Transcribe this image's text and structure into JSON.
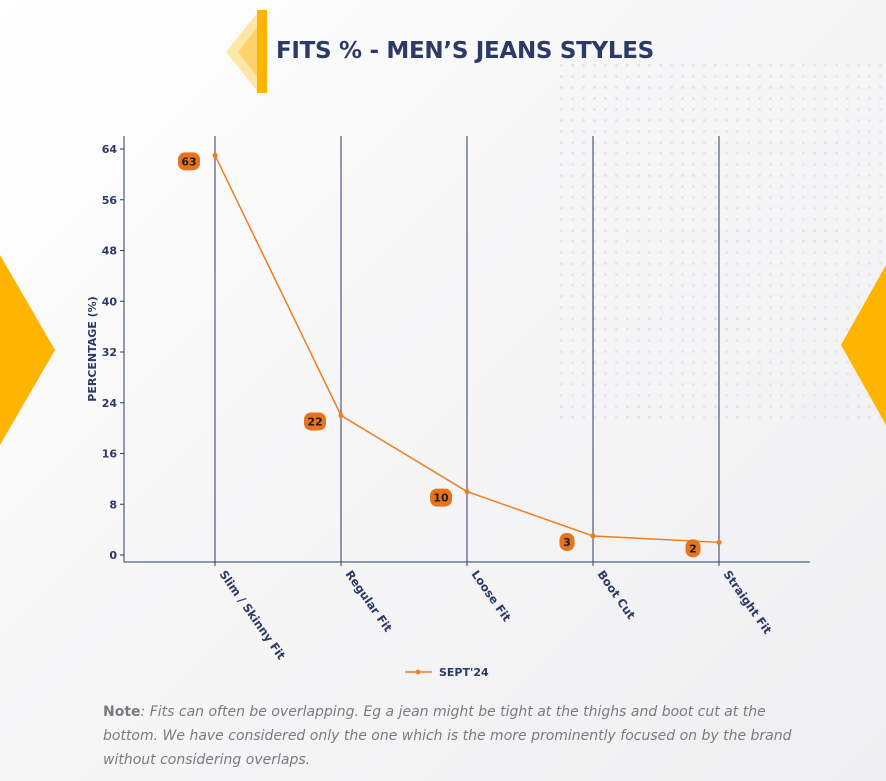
{
  "title": "FITS % - MEN’S JEANS STYLES",
  "note": {
    "label": "Note",
    "text": ": Fits can often be overlapping. Eg a jean might be tight at the thighs and boot cut at the bottom. We have considered only the one which is the more prominently focused on by the brand without considering overlaps."
  },
  "colors": {
    "series": "#f07d1e",
    "label_bg": "#e8731c",
    "axis": "#2b3a66",
    "accent": "#ffb400"
  },
  "chart_data": {
    "type": "line",
    "categories": [
      "Slim / Skinny Fit",
      "Regular Fit",
      "Loose Fit",
      "Boot Cut",
      "Straight Fit"
    ],
    "series": [
      {
        "name": "SEPT'24",
        "values": [
          63,
          22,
          10,
          3,
          2
        ]
      }
    ],
    "data_labels": [
      "63",
      "22",
      "10",
      "3",
      "2"
    ],
    "ylabel": "PERCENTAGE (%)",
    "xlabel": "",
    "ylim": [
      0,
      64
    ],
    "yticks": [
      0,
      8,
      16,
      24,
      32,
      40,
      48,
      56,
      64
    ],
    "grid": "vertical",
    "legend": "bottom"
  }
}
